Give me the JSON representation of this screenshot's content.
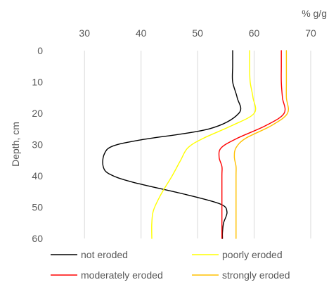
{
  "chart_data": {
    "type": "line",
    "xlabel": "% g/g",
    "ylabel": "Depth, cm",
    "xlim": [
      25,
      70
    ],
    "ylim": [
      0,
      60
    ],
    "y_inverted": true,
    "x_axis_position": "top",
    "x_ticks": [
      "30",
      "40",
      "50",
      "60",
      "70"
    ],
    "y_ticks": [
      "0",
      "10",
      "20",
      "30",
      "40",
      "50",
      "60"
    ],
    "grid": "vertical",
    "legend_position": "bottom",
    "series": [
      {
        "name": "not eroded",
        "color": "#000000",
        "points": [
          [
            56.2,
            0
          ],
          [
            56.2,
            5
          ],
          [
            56.2,
            10
          ],
          [
            57.0,
            15
          ],
          [
            57.3,
            20
          ],
          [
            52.0,
            25
          ],
          [
            40.0,
            28.5
          ],
          [
            35.0,
            30.5
          ],
          [
            33.5,
            33
          ],
          [
            33.3,
            37
          ],
          [
            34.5,
            39.5
          ],
          [
            38.5,
            42
          ],
          [
            48.0,
            46
          ],
          [
            54.0,
            49
          ],
          [
            55.2,
            51.5
          ],
          [
            54.6,
            55
          ],
          [
            54.4,
            58
          ],
          [
            54.4,
            60
          ]
        ]
      },
      {
        "name": "poorly eroded",
        "color": "#ffff00",
        "points": [
          [
            59.2,
            0
          ],
          [
            59.2,
            5
          ],
          [
            59.3,
            10
          ],
          [
            59.8,
            15
          ],
          [
            60.0,
            20
          ],
          [
            56.0,
            24
          ],
          [
            51.0,
            28
          ],
          [
            48.3,
            31
          ],
          [
            47.0,
            35
          ],
          [
            45.5,
            40
          ],
          [
            43.5,
            46
          ],
          [
            42.2,
            51
          ],
          [
            41.9,
            55
          ],
          [
            41.9,
            60
          ]
        ]
      },
      {
        "name": "moderately eroded",
        "color": "#ff0000",
        "points": [
          [
            64.8,
            0
          ],
          [
            64.8,
            5
          ],
          [
            64.8,
            10
          ],
          [
            65.0,
            15
          ],
          [
            65.3,
            20
          ],
          [
            62.0,
            24
          ],
          [
            57.0,
            28
          ],
          [
            54.2,
            31
          ],
          [
            53.8,
            34
          ],
          [
            54.3,
            37
          ],
          [
            54.3,
            40
          ],
          [
            54.3,
            50
          ],
          [
            54.3,
            60
          ]
        ]
      },
      {
        "name": "strongly eroded",
        "color": "#ffc000",
        "points": [
          [
            65.7,
            0
          ],
          [
            65.7,
            5
          ],
          [
            65.7,
            10
          ],
          [
            65.7,
            15
          ],
          [
            65.9,
            20
          ],
          [
            63.0,
            24
          ],
          [
            58.5,
            28
          ],
          [
            56.8,
            31
          ],
          [
            56.5,
            34
          ],
          [
            56.8,
            37
          ],
          [
            56.8,
            40
          ],
          [
            56.8,
            50
          ],
          [
            56.8,
            60
          ]
        ]
      }
    ]
  }
}
